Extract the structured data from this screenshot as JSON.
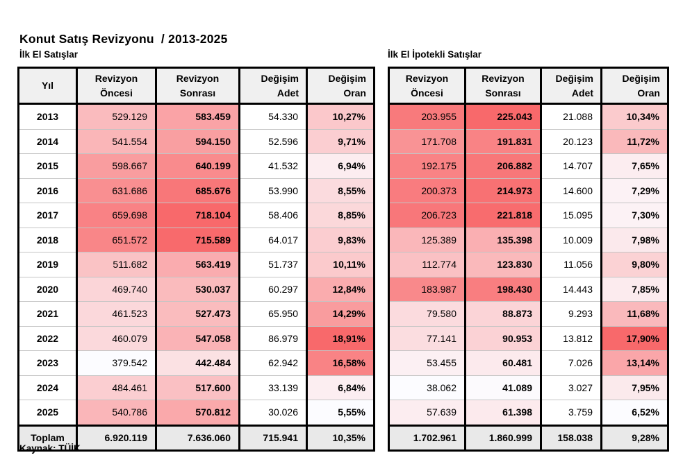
{
  "title": "Konut Satış Revizyonu  / 2013-2025",
  "source": "Kaynak: TÜİK",
  "heatmap": {
    "min_color": "#FCFCFF",
    "max_color": "#F8696B"
  },
  "chart_data": [
    {
      "type": "table",
      "title": "İlk El Satışlar",
      "columns": [
        "Yıl",
        "Revizyon Öncesi",
        "Revizyon Sonrası",
        "Değişim Adet",
        "Değişim Oran"
      ],
      "rows": [
        [
          "2013",
          "529.129",
          "583.459",
          "54.330",
          "10,27%"
        ],
        [
          "2014",
          "541.554",
          "594.150",
          "52.596",
          "9,71%"
        ],
        [
          "2015",
          "598.667",
          "640.199",
          "41.532",
          "6,94%"
        ],
        [
          "2016",
          "631.686",
          "685.676",
          "53.990",
          "8,55%"
        ],
        [
          "2017",
          "659.698",
          "718.104",
          "58.406",
          "8,85%"
        ],
        [
          "2018",
          "651.572",
          "715.589",
          "64.017",
          "9,83%"
        ],
        [
          "2019",
          "511.682",
          "563.419",
          "51.737",
          "10,11%"
        ],
        [
          "2020",
          "469.740",
          "530.037",
          "60.297",
          "12,84%"
        ],
        [
          "2021",
          "461.523",
          "527.473",
          "65.950",
          "14,29%"
        ],
        [
          "2022",
          "460.079",
          "547.058",
          "86.979",
          "18,91%"
        ],
        [
          "2023",
          "379.542",
          "442.484",
          "62.942",
          "16,58%"
        ],
        [
          "2024",
          "484.461",
          "517.600",
          "33.139",
          "6,84%"
        ],
        [
          "2025",
          "540.786",
          "570.812",
          "30.026",
          "5,55%"
        ]
      ],
      "total": [
        "Toplam",
        "6.920.119",
        "7.636.060",
        "715.941",
        "10,35%"
      ]
    },
    {
      "type": "table",
      "title": "İlk El İpotekli Satışlar",
      "columns": [
        "Revizyon Öncesi",
        "Revizyon Sonrası",
        "Değişim Adet",
        "Değişim Oran"
      ],
      "rows": [
        [
          "203.955",
          "225.043",
          "21.088",
          "10,34%"
        ],
        [
          "171.708",
          "191.831",
          "20.123",
          "11,72%"
        ],
        [
          "192.175",
          "206.882",
          "14.707",
          "7,65%"
        ],
        [
          "200.373",
          "214.973",
          "14.600",
          "7,29%"
        ],
        [
          "206.723",
          "221.818",
          "15.095",
          "7,30%"
        ],
        [
          "125.389",
          "135.398",
          "10.009",
          "7,98%"
        ],
        [
          "112.774",
          "123.830",
          "11.056",
          "9,80%"
        ],
        [
          "183.987",
          "198.430",
          "14.443",
          "7,85%"
        ],
        [
          "79.580",
          "88.873",
          "9.293",
          "11,68%"
        ],
        [
          "77.141",
          "90.953",
          "13.812",
          "17,90%"
        ],
        [
          "53.455",
          "60.481",
          "7.026",
          "13,14%"
        ],
        [
          "38.062",
          "41.089",
          "3.027",
          "7,95%"
        ],
        [
          "57.639",
          "61.398",
          "3.759",
          "6,52%"
        ]
      ],
      "total": [
        "1.702.961",
        "1.860.999",
        "158.038",
        "9,28%"
      ]
    }
  ]
}
